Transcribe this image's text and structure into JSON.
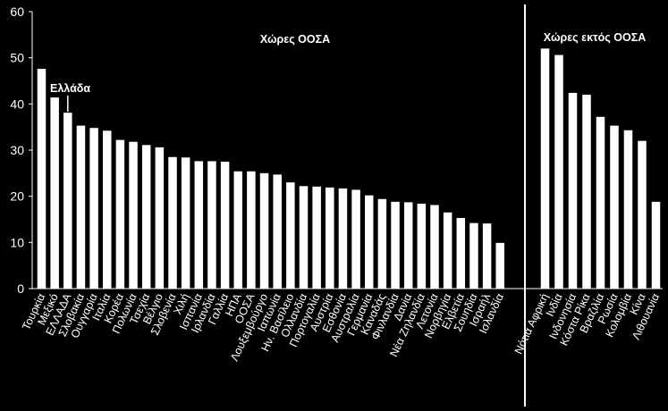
{
  "chart_data": {
    "type": "bar",
    "ylim": [
      0,
      60
    ],
    "yticks": [
      0,
      10,
      20,
      30,
      40,
      50,
      60
    ],
    "grid": false,
    "legend": "none",
    "colors": {
      "background": "#000000",
      "bar": "#ffffff",
      "text": "#ffffff"
    },
    "groups": [
      {
        "label": "Χώρες ΟΟΣΑ",
        "categories": [
          "Τουρκία",
          "Μεξικό",
          "ΕΛΛΑΔΑ",
          "Σλοβακία",
          "Ουγγαρία",
          "Ιταλία",
          "Κορέα",
          "Πολωνία",
          "Τσεχία",
          "Βέλγιο",
          "Σλοβενία",
          "Χιλή",
          "Ισπανία",
          "Ιρλανδία",
          "Γαλλία",
          "ΗΠΑ",
          "ΟΟΣΑ",
          "Λουξεμβούργο",
          "Ιαπωνία",
          "Ην. Βασίλειο",
          "Ολλανδία",
          "Πορτογαλία",
          "Αυστρία",
          "Εσθονία",
          "Αυστραλία",
          "Γερμανία",
          "Καναδάς",
          "Φινλανδία",
          "Δανία",
          "Νέα Ζηλανδία",
          "Λετονία",
          "Νορβηγία",
          "Ελβετία",
          "Σουηδία",
          "Ισραήλ",
          "Ισλανδία"
        ],
        "values": [
          47.6,
          41.4,
          38.1,
          35.3,
          34.8,
          34.2,
          32.2,
          31.8,
          31.1,
          30.6,
          28.5,
          28.4,
          27.6,
          27.6,
          27.5,
          25.4,
          25.4,
          25.0,
          24.7,
          23.0,
          22.2,
          22.1,
          21.9,
          21.7,
          21.4,
          20.2,
          19.4,
          18.8,
          18.7,
          18.4,
          18.1,
          16.5,
          15.3,
          14.2,
          14.1,
          9.9
        ]
      },
      {
        "label": "Χώρες εκτός ΟΟΣΑ",
        "categories": [
          "Νότια Αφρική",
          "Ινδία",
          "Ινδονησία",
          "Κόστα Ρίκα",
          "Βραζιλία",
          "Ρωσία",
          "Κολομβία",
          "Κίνα",
          "Λιθουανία"
        ],
        "values": [
          52.0,
          50.6,
          42.4,
          42.0,
          37.2,
          35.3,
          34.3,
          32.0,
          18.8
        ]
      }
    ],
    "annotations": [
      {
        "text": "Ελλάδα",
        "target": "ΕΛΛΑΔΑ"
      }
    ]
  }
}
